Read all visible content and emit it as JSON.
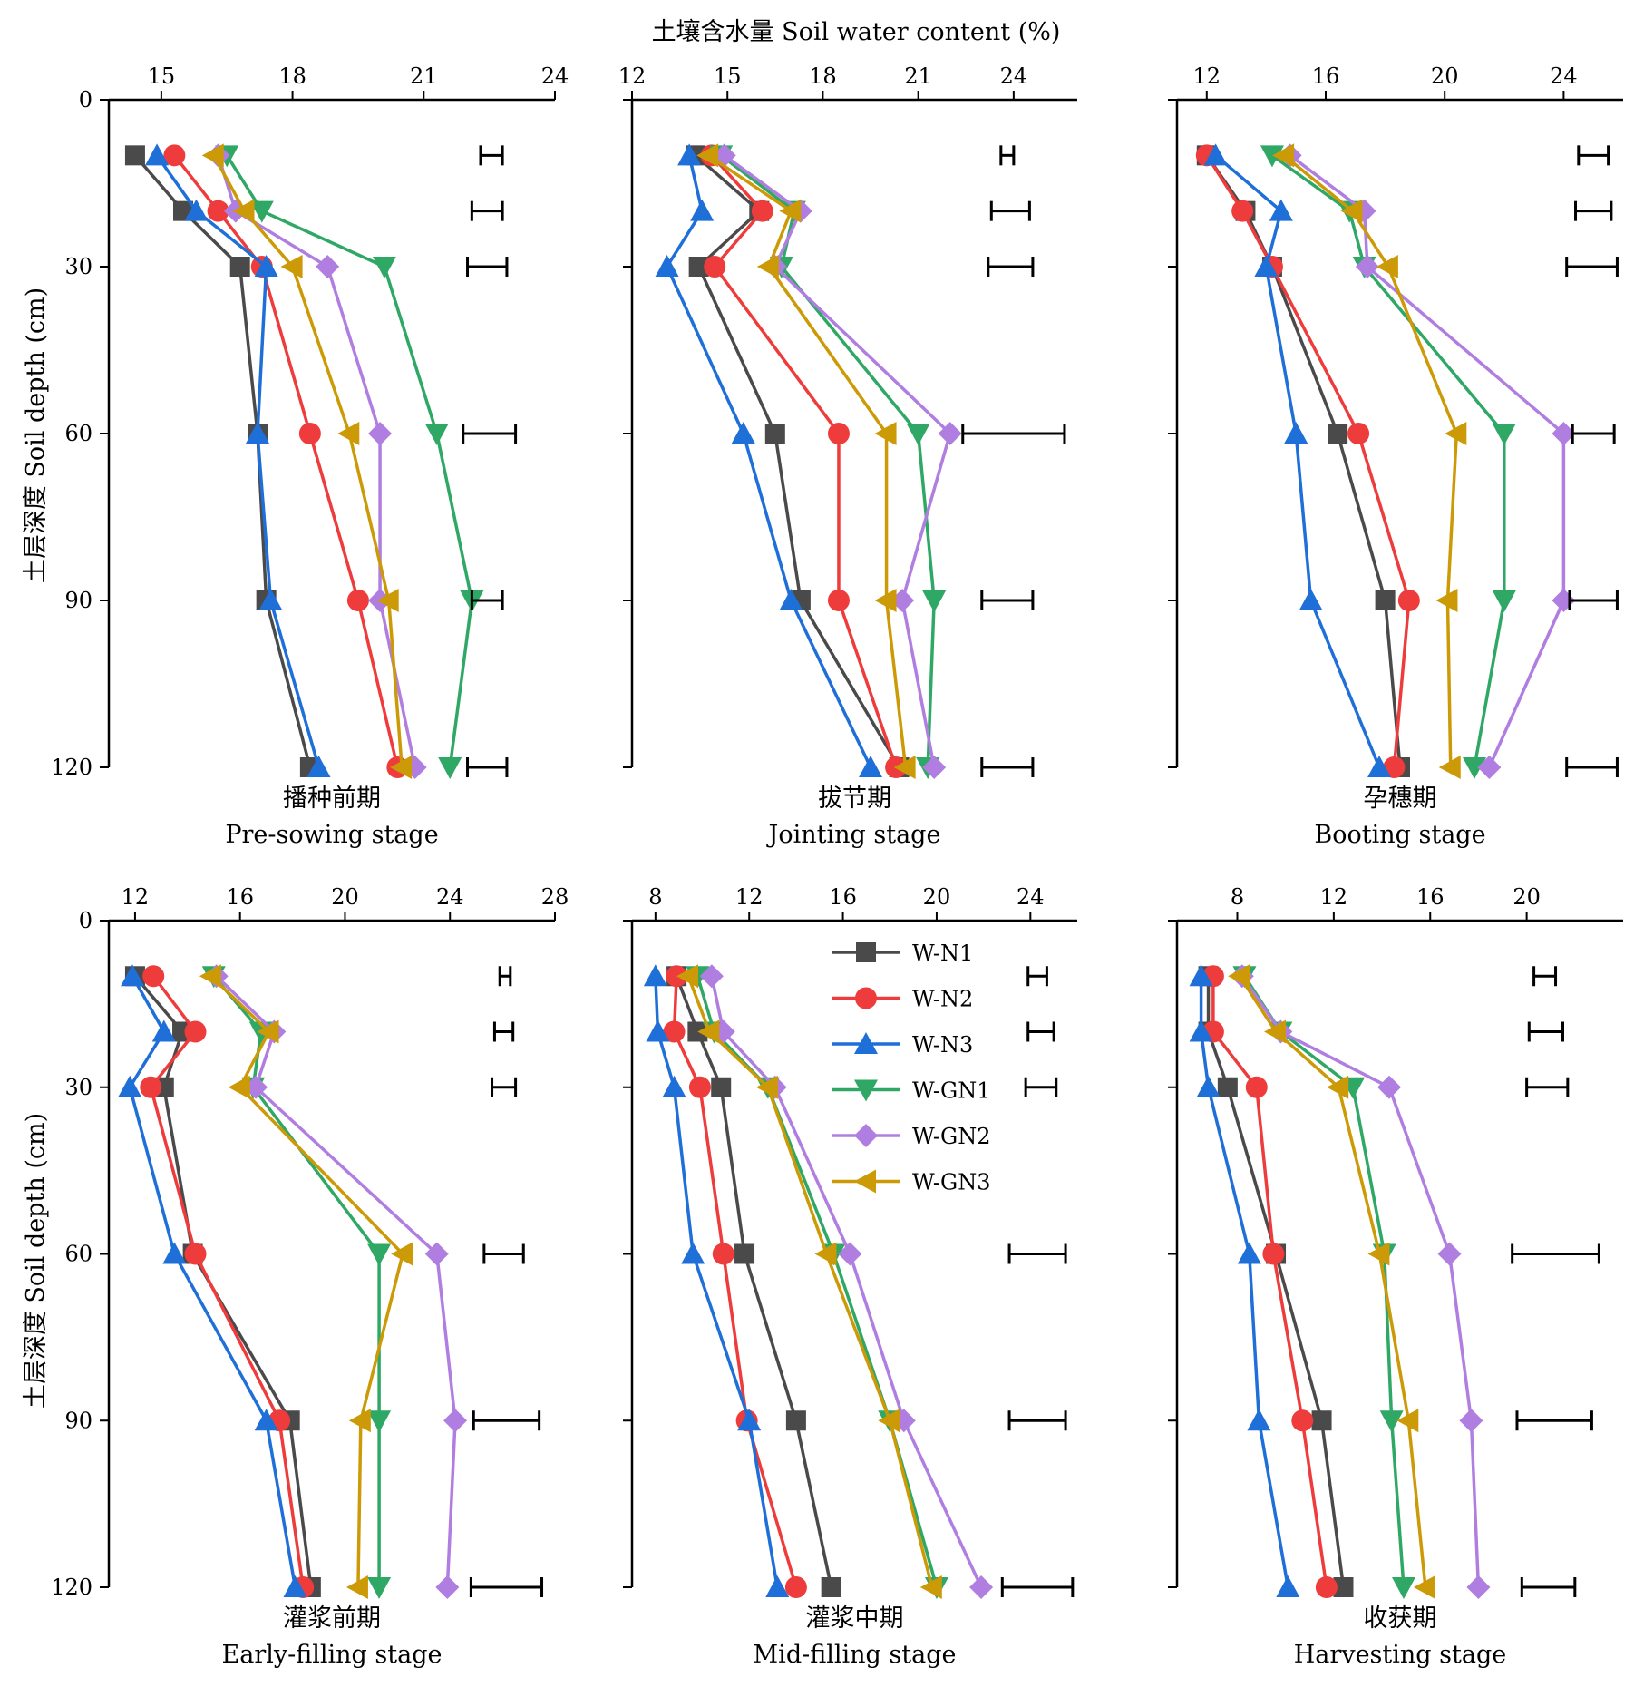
{
  "figure": {
    "x_axis_label": "土壤含水量 Soil water content (%)",
    "y_axis_label": "土层深度 Soil depth (cm)",
    "depth_ticks": [
      0,
      30,
      60,
      90,
      120
    ],
    "series_names": [
      "W-N1",
      "W-N2",
      "W-N3",
      "W-GN1",
      "W-GN2",
      "W-GN3"
    ],
    "series_colors": [
      "#4a4a4a",
      "#ee3b3b",
      "#1f6fd8",
      "#2fa866",
      "#b07ee0",
      "#cc9a06"
    ],
    "series_markers": [
      "square",
      "circle",
      "triangle-up",
      "triangle-down",
      "diamond",
      "triangle-left"
    ],
    "legend_position": "top-right of Mid-filling panel"
  },
  "chart_data": [
    {
      "type": "line",
      "title_cn": "播种前期",
      "title_en": "Pre-sowing stage",
      "xlim": [
        13.8,
        24
      ],
      "xticks": [
        15,
        18,
        21,
        24
      ],
      "depths": [
        10,
        20,
        30,
        60,
        90,
        120
      ],
      "series": [
        {
          "name": "W-N1",
          "values": [
            14.4,
            15.5,
            16.8,
            17.2,
            17.4,
            18.4
          ]
        },
        {
          "name": "W-N2",
          "values": [
            15.3,
            16.3,
            17.3,
            18.4,
            19.5,
            20.4
          ]
        },
        {
          "name": "W-N3",
          "values": [
            14.9,
            15.8,
            17.4,
            17.2,
            17.5,
            18.6
          ]
        },
        {
          "name": "W-GN1",
          "values": [
            16.5,
            17.3,
            20.1,
            21.3,
            22.1,
            21.6
          ]
        },
        {
          "name": "W-GN2",
          "values": [
            16.3,
            16.7,
            18.8,
            20.0,
            20.0,
            20.8
          ]
        },
        {
          "name": "W-GN3",
          "values": [
            16.2,
            16.9,
            18.0,
            19.3,
            20.2,
            20.5
          ]
        }
      ],
      "error_bars": [
        {
          "depth": 10,
          "low": 22.3,
          "high": 22.8
        },
        {
          "depth": 20,
          "low": 22.1,
          "high": 22.8
        },
        {
          "depth": 30,
          "low": 22.0,
          "high": 22.9
        },
        {
          "depth": 60,
          "low": 21.9,
          "high": 23.1
        },
        {
          "depth": 90,
          "low": 22.1,
          "high": 22.8
        },
        {
          "depth": 120,
          "low": 22.0,
          "high": 22.9
        }
      ]
    },
    {
      "type": "line",
      "title_cn": "拔节期",
      "title_en": "Jointing stage",
      "xlim": [
        12,
        26
      ],
      "xticks": [
        12,
        15,
        18,
        21,
        24
      ],
      "depths": [
        10,
        20,
        30,
        60,
        90,
        120
      ],
      "series": [
        {
          "name": "W-N1",
          "values": [
            14.0,
            16.0,
            14.1,
            16.5,
            17.3,
            20.4
          ]
        },
        {
          "name": "W-N2",
          "values": [
            14.5,
            16.1,
            14.6,
            18.5,
            18.5,
            20.3
          ]
        },
        {
          "name": "W-N3",
          "values": [
            13.8,
            14.2,
            13.1,
            15.5,
            17.0,
            19.5
          ]
        },
        {
          "name": "W-GN1",
          "values": [
            14.8,
            17.1,
            16.7,
            21.0,
            21.5,
            21.3
          ]
        },
        {
          "name": "W-GN2",
          "values": [
            14.9,
            17.3,
            16.5,
            22.0,
            20.5,
            21.5
          ]
        },
        {
          "name": "W-GN3",
          "values": [
            14.4,
            17.0,
            16.3,
            20.0,
            20.0,
            20.6
          ]
        }
      ],
      "error_bars": [
        {
          "depth": 10,
          "low": 23.6,
          "high": 24.0
        },
        {
          "depth": 20,
          "low": 23.3,
          "high": 24.5
        },
        {
          "depth": 30,
          "low": 23.2,
          "high": 24.6
        },
        {
          "depth": 60,
          "low": 22.4,
          "high": 25.6
        },
        {
          "depth": 90,
          "low": 23.0,
          "high": 24.6
        },
        {
          "depth": 120,
          "low": 23.0,
          "high": 24.6
        }
      ]
    },
    {
      "type": "line",
      "title_cn": "孕穗期",
      "title_en": "Booting stage",
      "xlim": [
        11,
        26
      ],
      "xticks": [
        12,
        16,
        20,
        24
      ],
      "depths": [
        10,
        20,
        30,
        60,
        90,
        120
      ],
      "series": [
        {
          "name": "W-N1",
          "values": [
            12.0,
            13.3,
            14.2,
            16.4,
            18.0,
            18.5
          ]
        },
        {
          "name": "W-N2",
          "values": [
            12.0,
            13.2,
            14.2,
            17.1,
            18.8,
            18.3
          ]
        },
        {
          "name": "W-N3",
          "values": [
            12.3,
            14.5,
            14.0,
            15.0,
            15.5,
            17.8
          ]
        },
        {
          "name": "W-GN1",
          "values": [
            14.2,
            16.8,
            17.3,
            22.0,
            22.0,
            21.0
          ]
        },
        {
          "name": "W-GN2",
          "values": [
            14.8,
            17.3,
            17.4,
            24.0,
            24.0,
            21.5
          ]
        },
        {
          "name": "W-GN3",
          "values": [
            14.6,
            16.9,
            18.1,
            20.4,
            20.1,
            20.2
          ]
        }
      ],
      "error_bars": [
        {
          "depth": 10,
          "low": 24.5,
          "high": 25.5
        },
        {
          "depth": 20,
          "low": 24.4,
          "high": 25.6
        },
        {
          "depth": 30,
          "low": 24.1,
          "high": 25.8
        },
        {
          "depth": 60,
          "low": 24.3,
          "high": 25.7
        },
        {
          "depth": 90,
          "low": 24.2,
          "high": 25.8
        },
        {
          "depth": 120,
          "low": 24.1,
          "high": 25.8
        }
      ]
    },
    {
      "type": "line",
      "title_cn": "灌浆前期",
      "title_en": "Early-filling stage",
      "xlim": [
        11,
        28
      ],
      "xticks": [
        12,
        16,
        20,
        24,
        28
      ],
      "depths": [
        10,
        20,
        30,
        60,
        90,
        120
      ],
      "series": [
        {
          "name": "W-N1",
          "values": [
            12.0,
            13.8,
            13.1,
            14.2,
            17.9,
            18.7
          ]
        },
        {
          "name": "W-N2",
          "values": [
            12.7,
            14.3,
            12.6,
            14.3,
            17.5,
            18.4
          ]
        },
        {
          "name": "W-N3",
          "values": [
            11.9,
            13.1,
            11.8,
            13.5,
            17.0,
            18.1
          ]
        },
        {
          "name": "W-GN1",
          "values": [
            15.0,
            16.8,
            16.5,
            21.3,
            21.3,
            21.3
          ]
        },
        {
          "name": "W-GN2",
          "values": [
            15.1,
            17.3,
            16.6,
            23.5,
            24.2,
            23.9
          ]
        },
        {
          "name": "W-GN3",
          "values": [
            14.9,
            17.1,
            16.0,
            22.2,
            20.6,
            20.5
          ]
        }
      ],
      "error_bars": [
        {
          "depth": 10,
          "low": 25.9,
          "high": 26.3
        },
        {
          "depth": 20,
          "low": 25.7,
          "high": 26.4
        },
        {
          "depth": 30,
          "low": 25.6,
          "high": 26.5
        },
        {
          "depth": 60,
          "low": 25.3,
          "high": 26.8
        },
        {
          "depth": 90,
          "low": 24.9,
          "high": 27.4
        },
        {
          "depth": 120,
          "low": 24.8,
          "high": 27.5
        }
      ]
    },
    {
      "type": "line",
      "title_cn": "灌浆中期",
      "title_en": "Mid-filling stage",
      "xlim": [
        7,
        26
      ],
      "xticks": [
        8,
        12,
        16,
        20,
        24
      ],
      "depths": [
        10,
        20,
        30,
        60,
        90,
        120
      ],
      "series": [
        {
          "name": "W-N1",
          "values": [
            8.9,
            9.8,
            10.8,
            11.8,
            14.0,
            15.5
          ]
        },
        {
          "name": "W-N2",
          "values": [
            8.9,
            8.8,
            9.9,
            10.9,
            11.9,
            14.0
          ]
        },
        {
          "name": "W-N3",
          "values": [
            8.0,
            8.1,
            8.8,
            9.6,
            12.0,
            13.2
          ]
        },
        {
          "name": "W-GN1",
          "values": [
            9.8,
            10.5,
            12.8,
            15.6,
            18.0,
            20.0
          ]
        },
        {
          "name": "W-GN2",
          "values": [
            10.4,
            10.9,
            13.1,
            16.3,
            18.6,
            21.9
          ]
        },
        {
          "name": "W-GN3",
          "values": [
            9.4,
            10.3,
            12.8,
            15.3,
            18.0,
            19.8
          ]
        }
      ],
      "error_bars": [
        {
          "depth": 10,
          "low": 23.9,
          "high": 24.7
        },
        {
          "depth": 20,
          "low": 23.9,
          "high": 25.0
        },
        {
          "depth": 30,
          "low": 23.8,
          "high": 25.1
        },
        {
          "depth": 60,
          "low": 23.1,
          "high": 25.5
        },
        {
          "depth": 90,
          "low": 23.1,
          "high": 25.5
        },
        {
          "depth": 120,
          "low": 22.8,
          "high": 25.8
        }
      ]
    },
    {
      "type": "line",
      "title_cn": "收获期",
      "title_en": "Harvesting stage",
      "xlim": [
        5.5,
        24
      ],
      "xticks": [
        8,
        12,
        16,
        20
      ],
      "depths": [
        10,
        20,
        30,
        60,
        90,
        120
      ],
      "series": [
        {
          "name": "W-N1",
          "values": [
            6.8,
            6.8,
            7.6,
            9.6,
            11.5,
            12.4
          ]
        },
        {
          "name": "W-N2",
          "values": [
            7.0,
            7.0,
            8.8,
            9.5,
            10.7,
            11.7
          ]
        },
        {
          "name": "W-N3",
          "values": [
            6.5,
            6.5,
            6.8,
            8.5,
            8.9,
            10.1
          ]
        },
        {
          "name": "W-GN1",
          "values": [
            8.3,
            9.8,
            12.8,
            14.1,
            14.4,
            14.9
          ]
        },
        {
          "name": "W-GN2",
          "values": [
            8.2,
            9.8,
            14.3,
            16.8,
            17.7,
            18.0
          ]
        },
        {
          "name": "W-GN3",
          "values": [
            8.1,
            9.6,
            12.2,
            13.9,
            15.1,
            15.8
          ]
        }
      ],
      "error_bars": [
        {
          "depth": 10,
          "low": 20.3,
          "high": 21.2
        },
        {
          "depth": 20,
          "low": 20.1,
          "high": 21.5
        },
        {
          "depth": 30,
          "low": 20.0,
          "high": 21.7
        },
        {
          "depth": 60,
          "low": 19.4,
          "high": 23.0
        },
        {
          "depth": 90,
          "low": 19.6,
          "high": 22.7
        },
        {
          "depth": 120,
          "low": 19.8,
          "high": 22.0
        }
      ]
    }
  ]
}
